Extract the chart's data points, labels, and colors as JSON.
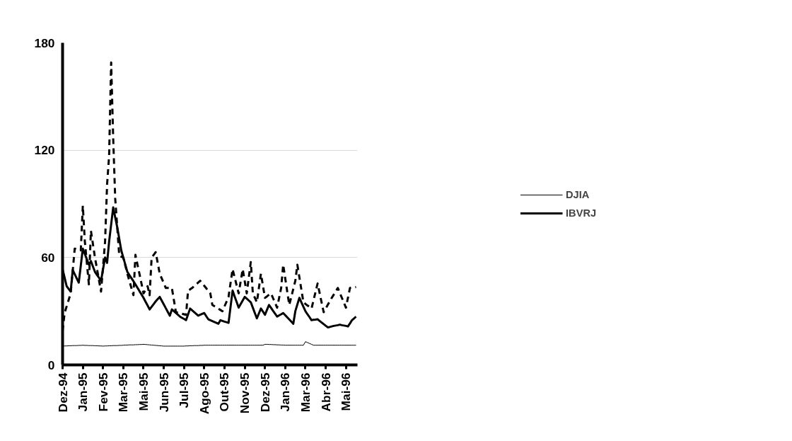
{
  "chart_data": {
    "type": "line",
    "categories": [
      "Dez-94",
      null,
      null,
      null,
      null,
      null,
      null,
      null,
      null,
      null,
      "Jan-95",
      null,
      null,
      null,
      null,
      null,
      null,
      null,
      null,
      null,
      "Fev-95",
      null,
      null,
      null,
      null,
      null,
      null,
      null,
      null,
      null,
      "Mar-95",
      null,
      null,
      null,
      null,
      null,
      null,
      null,
      null,
      null,
      "Mai-95",
      null,
      null,
      null,
      null,
      null,
      null,
      null,
      null,
      null,
      "Jun-95",
      null,
      null,
      null,
      null,
      null,
      null,
      null,
      null,
      null,
      "Jul-95",
      null,
      null,
      null,
      null,
      null,
      null,
      null,
      null,
      null,
      "Ago-95",
      null,
      null,
      null,
      null,
      null,
      null,
      null,
      null,
      null,
      "Out-95",
      null,
      null,
      null,
      null,
      null,
      null,
      null,
      null,
      null,
      "Nov-95",
      null,
      null,
      null,
      null,
      null,
      null,
      null,
      null,
      null,
      "Dez-95",
      null,
      null,
      null,
      null,
      null,
      null,
      null,
      null,
      null,
      "Jan-96",
      null,
      null,
      null,
      null,
      null,
      null,
      null,
      null,
      null,
      "Mar-96",
      null,
      null,
      null,
      null,
      null,
      null,
      null,
      null,
      null,
      "Abr-96",
      null,
      null,
      null,
      null,
      null,
      null,
      null,
      null,
      null,
      "Mai-96",
      null,
      null,
      null,
      null,
      null
    ],
    "ylim": [
      0,
      180
    ],
    "yticks": [
      0,
      60,
      120,
      180
    ],
    "grid": "y",
    "legend": "right",
    "series": [
      {
        "name": "DJIA",
        "color": "#000000",
        "line_style": "solid",
        "values": [
          10.5,
          10.6,
          10.6,
          10.7,
          10.7,
          10.8,
          10.8,
          10.8,
          10.9,
          10.9,
          11,
          10.9,
          10.9,
          10.8,
          10.8,
          10.8,
          10.7,
          10.7,
          10.6,
          10.6,
          10.5,
          10.6,
          10.6,
          10.7,
          10.7,
          10.8,
          10.8,
          10.8,
          10.9,
          10.9,
          11,
          11.1,
          11.1,
          11.2,
          11.2,
          11.2,
          11.3,
          11.3,
          11.4,
          11.4,
          11.5,
          11.4,
          11.3,
          11.2,
          11.1,
          11,
          10.9,
          10.8,
          10.7,
          10.6,
          10.5,
          10.5,
          10.5,
          10.5,
          10.5,
          10.5,
          10.5,
          10.5,
          10.5,
          10.5,
          10.5,
          10.6,
          10.6,
          10.7,
          10.7,
          10.8,
          10.8,
          10.8,
          10.9,
          10.9,
          11,
          11,
          11,
          11,
          11,
          11,
          11,
          11,
          11,
          11,
          11,
          11,
          11,
          11,
          11,
          11,
          11,
          11,
          11,
          11,
          11,
          11,
          11,
          11,
          11,
          11,
          11,
          11,
          11,
          11,
          11.5,
          11.5,
          11.4,
          11.4,
          11.3,
          11.3,
          11.2,
          11.2,
          11.1,
          11.1,
          11,
          11,
          11,
          11,
          11,
          11,
          11,
          11,
          11,
          11,
          13,
          12.5,
          12,
          11.5,
          11,
          11,
          11,
          11,
          11,
          11,
          11,
          11,
          11,
          11,
          11,
          11,
          11,
          11,
          11,
          11,
          11,
          11,
          11,
          11,
          11,
          11
        ]
      },
      {
        "name": "IBVRJ",
        "color": "#000000",
        "line_style": "solid",
        "values": [
          53.5,
          48.8,
          44,
          42.5,
          41,
          53,
          50.7,
          48.3,
          46,
          55.5,
          65,
          62,
          59,
          56,
          58,
          55,
          52,
          50.3,
          48.7,
          47,
          53.5,
          60,
          57,
          69,
          78.5,
          88,
          82.5,
          77,
          70.5,
          64,
          60,
          56,
          52,
          50.2,
          48.5,
          46.8,
          45,
          43.1,
          41.2,
          39.4,
          37.5,
          35.3,
          33.2,
          31,
          32.5,
          34,
          35.5,
          36.8,
          38,
          35.9,
          33.8,
          31.7,
          29.6,
          27.5,
          31,
          30,
          29,
          28,
          27,
          26.3,
          25.7,
          25,
          28.2,
          31.5,
          30.5,
          29.5,
          28.5,
          27.5,
          28,
          28.5,
          29,
          27.2,
          25.5,
          25,
          24.5,
          24,
          23.5,
          23,
          25,
          24.6,
          24.2,
          23.9,
          23.5,
          32.5,
          41.5,
          38.3,
          35.2,
          32,
          34,
          36,
          38,
          37,
          36,
          35,
          32,
          29,
          26,
          28.8,
          31.5,
          29.8,
          28,
          30.8,
          33.5,
          31.9,
          30.2,
          28.6,
          27,
          27.7,
          28.3,
          29,
          27.8,
          26.6,
          25.4,
          24.2,
          23,
          30,
          33.8,
          37.5,
          35,
          32.5,
          30,
          28.3,
          26.7,
          25,
          25.2,
          25.3,
          25.5,
          24.6,
          23.7,
          22.8,
          21.9,
          21,
          21.2,
          21.5,
          21.8,
          22,
          22.2,
          22.5,
          22.2,
          22,
          21.8,
          21.5,
          23.2,
          25,
          26,
          27
        ]
      },
      {
        "color": "#000000",
        "line_style": "dashed",
        "values": [
          19,
          29,
          32.7,
          36.3,
          40,
          52.5,
          65,
          64.7,
          64.3,
          64,
          89,
          69,
          57,
          45,
          75,
          67.5,
          60,
          53.7,
          47.3,
          41,
          55,
          69,
          101,
          117,
          169,
          127,
          93,
          77,
          61,
          60.5,
          60,
          55.5,
          51,
          47,
          43,
          39,
          61.5,
          56.1,
          50.8,
          45.4,
          40,
          42,
          44,
          39,
          60,
          61.5,
          63,
          57,
          51,
          48.3,
          45.7,
          43,
          43,
          43,
          43,
          36.2,
          29.5,
          29.2,
          28.9,
          28.6,
          28.3,
          28,
          41.5,
          42.2,
          43,
          44,
          45,
          46,
          47,
          45.6,
          44.2,
          42.8,
          41.4,
          40,
          33.5,
          32.8,
          32.1,
          31.4,
          30.7,
          30,
          32.7,
          35.3,
          38,
          45.8,
          53.5,
          49,
          44.5,
          40,
          46.8,
          53.5,
          46.8,
          40,
          48.8,
          57.5,
          40,
          37.5,
          35,
          43,
          51,
          44.2,
          37.5,
          38.3,
          39.2,
          40,
          37.3,
          34.7,
          32,
          37.5,
          43,
          56,
          48.5,
          41,
          33.5,
          38,
          42.5,
          47,
          56,
          49,
          42,
          35,
          34.1,
          33.2,
          32.4,
          31.5,
          36.2,
          40.8,
          45.5,
          40.2,
          34.8,
          29.5,
          31.5,
          33.5,
          35.5,
          37.5,
          39.3,
          41.2,
          43,
          40.2,
          37.5,
          34.8,
          32,
          37.5,
          43,
          43.2,
          43.3,
          43.5
        ]
      }
    ]
  }
}
